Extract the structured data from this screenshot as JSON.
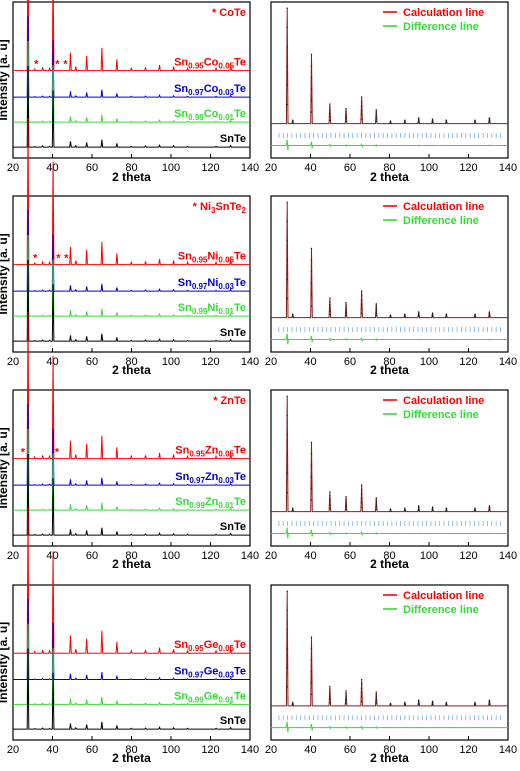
{
  "colors": {
    "red": "#ff0000",
    "blue": "#0000cc",
    "green": "#33dd33",
    "black": "#000000",
    "bragg": "#7aaee0",
    "fit": "#8b1a1a"
  },
  "chart_data": [
    {
      "id": "xrd-co",
      "type": "line",
      "xlabel": "2 theta",
      "ylabel": "Intensity [a. u]",
      "xlim": [
        20,
        140
      ],
      "xticks": [
        20,
        40,
        60,
        80,
        100,
        120,
        140
      ],
      "annotation": "* CoTe",
      "peaks": [
        [
          27.6,
          1.0
        ],
        [
          31.0,
          0.02
        ],
        [
          35.0,
          0.04
        ],
        [
          38.5,
          0.03
        ],
        [
          40.3,
          0.7
        ],
        [
          49.1,
          0.22
        ],
        [
          51.8,
          0.05
        ],
        [
          57.3,
          0.18
        ],
        [
          65.0,
          0.28
        ],
        [
          72.6,
          0.14
        ],
        [
          79.9,
          0.03
        ],
        [
          87.1,
          0.04
        ],
        [
          94.2,
          0.07
        ],
        [
          101.3,
          0.05
        ],
        [
          108.4,
          0.03
        ],
        [
          122.8,
          0.03
        ],
        [
          130.2,
          0.06
        ]
      ],
      "series": [
        {
          "name_parts": [
            "Sn",
            "0.95",
            "Co",
            "0.05",
            "Te"
          ],
          "color": "red",
          "impurity_peaks": [
            31.8,
            42.5,
            46.5
          ]
        },
        {
          "name_parts": [
            "Sn",
            "0.97",
            "Co",
            "0.03",
            "Te"
          ],
          "color": "blue",
          "impurity_peaks": []
        },
        {
          "name_parts": [
            "Sn",
            "0.99",
            "Co",
            "0.01",
            "Te"
          ],
          "color": "green",
          "impurity_peaks": []
        },
        {
          "name_parts": [
            "SnTe"
          ],
          "color": "black",
          "impurity_peaks": []
        }
      ]
    },
    {
      "id": "rietveld-co",
      "type": "line",
      "xlabel": "2 theta",
      "xlim": [
        20,
        140
      ],
      "xticks": [
        20,
        40,
        60,
        80,
        100,
        120,
        140
      ],
      "legend": [
        "Calculation line",
        "Difference line"
      ],
      "legend_position": "top-right",
      "peaks": [
        [
          28.2,
          1.0
        ],
        [
          31.0,
          0.03
        ],
        [
          40.5,
          0.6
        ],
        [
          49.8,
          0.17
        ],
        [
          58.0,
          0.13
        ],
        [
          65.9,
          0.23
        ],
        [
          73.3,
          0.12
        ],
        [
          80.5,
          0.02
        ],
        [
          87.8,
          0.03
        ],
        [
          94.8,
          0.05
        ],
        [
          101.8,
          0.04
        ],
        [
          108.8,
          0.03
        ],
        [
          123.3,
          0.03
        ],
        [
          130.6,
          0.05
        ]
      ]
    },
    {
      "id": "xrd-ni",
      "type": "line",
      "xlabel": "2 theta",
      "ylabel": "Intensity [a. u]",
      "xlim": [
        20,
        140
      ],
      "xticks": [
        20,
        40,
        60,
        80,
        100,
        120,
        140
      ],
      "annotation_parts": [
        "* Ni",
        "3",
        "SnTe",
        "2"
      ],
      "peaks": [
        [
          27.6,
          1.0
        ],
        [
          31.0,
          0.02
        ],
        [
          35.0,
          0.04
        ],
        [
          38.5,
          0.03
        ],
        [
          40.3,
          0.7
        ],
        [
          49.1,
          0.22
        ],
        [
          51.8,
          0.05
        ],
        [
          57.3,
          0.18
        ],
        [
          65.0,
          0.28
        ],
        [
          72.6,
          0.14
        ],
        [
          79.9,
          0.03
        ],
        [
          87.1,
          0.04
        ],
        [
          94.2,
          0.07
        ],
        [
          101.3,
          0.05
        ],
        [
          108.4,
          0.03
        ],
        [
          122.8,
          0.03
        ],
        [
          130.2,
          0.06
        ]
      ],
      "series": [
        {
          "name_parts": [
            "Sn",
            "0.95",
            "Ni",
            "0.05",
            "Te"
          ],
          "color": "red",
          "impurity_peaks": [
            31.2,
            43.0,
            47.0
          ]
        },
        {
          "name_parts": [
            "Sn",
            "0.97",
            "Ni",
            "0.03",
            "Te"
          ],
          "color": "blue",
          "impurity_peaks": []
        },
        {
          "name_parts": [
            "Sn",
            "0.99",
            "Ni",
            "0.01",
            "Te"
          ],
          "color": "green",
          "impurity_peaks": []
        },
        {
          "name_parts": [
            "SnTe"
          ],
          "color": "black",
          "impurity_peaks": []
        }
      ]
    },
    {
      "id": "rietveld-ni",
      "type": "line",
      "xlabel": "2 theta",
      "xlim": [
        20,
        140
      ],
      "xticks": [
        20,
        40,
        60,
        80,
        100,
        120,
        140
      ],
      "legend": [
        "Calculation line",
        "Difference line"
      ],
      "legend_position": "top-right",
      "peaks": [
        [
          28.2,
          1.0
        ],
        [
          31.0,
          0.03
        ],
        [
          40.5,
          0.6
        ],
        [
          49.8,
          0.17
        ],
        [
          58.0,
          0.13
        ],
        [
          65.9,
          0.23
        ],
        [
          73.3,
          0.12
        ],
        [
          80.5,
          0.02
        ],
        [
          87.8,
          0.03
        ],
        [
          94.8,
          0.05
        ],
        [
          101.8,
          0.04
        ],
        [
          108.8,
          0.03
        ],
        [
          123.3,
          0.03
        ],
        [
          130.6,
          0.05
        ]
      ]
    },
    {
      "id": "xrd-zn",
      "type": "line",
      "xlabel": "2 theta",
      "ylabel": "Intensity [a. u]",
      "xlim": [
        20,
        140
      ],
      "xticks": [
        20,
        40,
        60,
        80,
        100,
        120,
        140
      ],
      "annotation": "* ZnTe",
      "peaks": [
        [
          27.6,
          1.0
        ],
        [
          31.0,
          0.02
        ],
        [
          35.0,
          0.04
        ],
        [
          38.5,
          0.03
        ],
        [
          40.3,
          0.7
        ],
        [
          49.1,
          0.22
        ],
        [
          51.8,
          0.05
        ],
        [
          57.3,
          0.18
        ],
        [
          65.0,
          0.28
        ],
        [
          72.6,
          0.14
        ],
        [
          79.9,
          0.03
        ],
        [
          87.1,
          0.04
        ],
        [
          94.2,
          0.07
        ],
        [
          101.3,
          0.05
        ],
        [
          108.4,
          0.03
        ],
        [
          122.8,
          0.03
        ],
        [
          130.2,
          0.06
        ]
      ],
      "series": [
        {
          "name_parts": [
            "Sn",
            "0.95",
            "Zn",
            "0.05",
            "Te"
          ],
          "color": "red",
          "impurity_peaks": [
            25.0,
            42.3
          ]
        },
        {
          "name_parts": [
            "Sn",
            "0.97",
            "Zn",
            "0.03",
            "Te"
          ],
          "color": "blue",
          "impurity_peaks": []
        },
        {
          "name_parts": [
            "Sn",
            "0.99",
            "Zn",
            "0.01",
            "Te"
          ],
          "color": "green",
          "impurity_peaks": []
        },
        {
          "name_parts": [
            "SnTe"
          ],
          "color": "black",
          "impurity_peaks": []
        }
      ]
    },
    {
      "id": "rietveld-zn",
      "type": "line",
      "xlabel": "2 theta",
      "xlim": [
        20,
        140
      ],
      "xticks": [
        20,
        40,
        60,
        80,
        100,
        120,
        140
      ],
      "legend": [
        "Calculation line",
        "Difference line"
      ],
      "legend_position": "top-right",
      "peaks": [
        [
          28.2,
          1.0
        ],
        [
          31.0,
          0.03
        ],
        [
          40.5,
          0.6
        ],
        [
          49.8,
          0.17
        ],
        [
          58.0,
          0.13
        ],
        [
          65.9,
          0.23
        ],
        [
          73.3,
          0.12
        ],
        [
          80.5,
          0.02
        ],
        [
          87.8,
          0.03
        ],
        [
          94.8,
          0.05
        ],
        [
          101.8,
          0.04
        ],
        [
          108.8,
          0.03
        ],
        [
          123.3,
          0.03
        ],
        [
          130.6,
          0.05
        ]
      ]
    },
    {
      "id": "xrd-ge",
      "type": "line",
      "xlabel": "2 theta",
      "ylabel": "Intensity [a. u]",
      "xlim": [
        20,
        140
      ],
      "xticks": [
        20,
        40,
        60,
        80,
        100,
        120,
        140
      ],
      "peaks": [
        [
          27.6,
          1.0
        ],
        [
          31.0,
          0.02
        ],
        [
          35.0,
          0.04
        ],
        [
          38.5,
          0.03
        ],
        [
          40.3,
          0.7
        ],
        [
          49.1,
          0.22
        ],
        [
          51.8,
          0.05
        ],
        [
          57.3,
          0.18
        ],
        [
          65.0,
          0.28
        ],
        [
          72.6,
          0.14
        ],
        [
          79.9,
          0.03
        ],
        [
          87.1,
          0.04
        ],
        [
          94.2,
          0.07
        ],
        [
          101.3,
          0.05
        ],
        [
          108.4,
          0.03
        ],
        [
          122.8,
          0.03
        ],
        [
          130.2,
          0.06
        ]
      ],
      "series": [
        {
          "name_parts": [
            "Sn",
            "0.95",
            "Ge",
            "0.05",
            "Te"
          ],
          "color": "red",
          "impurity_peaks": []
        },
        {
          "name_parts": [
            "Sn",
            "0.97",
            "Ge",
            "0.03",
            "Te"
          ],
          "color": "blue",
          "impurity_peaks": []
        },
        {
          "name_parts": [
            "Sn",
            "0.99",
            "Ge",
            "0.01",
            "Te"
          ],
          "color": "green",
          "impurity_peaks": []
        },
        {
          "name_parts": [
            "SnTe"
          ],
          "color": "black",
          "impurity_peaks": []
        }
      ]
    },
    {
      "id": "rietveld-ge",
      "type": "line",
      "xlabel": "2 theta",
      "xlim": [
        20,
        140
      ],
      "xticks": [
        20,
        40,
        60,
        80,
        100,
        120,
        140
      ],
      "legend": [
        "Calculation line",
        "Difference line"
      ],
      "legend_position": "top-right",
      "peaks": [
        [
          28.2,
          1.0
        ],
        [
          31.0,
          0.03
        ],
        [
          40.5,
          0.6
        ],
        [
          49.8,
          0.17
        ],
        [
          58.0,
          0.13
        ],
        [
          65.9,
          0.23
        ],
        [
          73.3,
          0.12
        ],
        [
          80.5,
          0.02
        ],
        [
          87.8,
          0.03
        ],
        [
          94.8,
          0.05
        ],
        [
          101.8,
          0.04
        ],
        [
          108.8,
          0.03
        ],
        [
          123.3,
          0.03
        ],
        [
          130.6,
          0.05
        ]
      ]
    }
  ]
}
